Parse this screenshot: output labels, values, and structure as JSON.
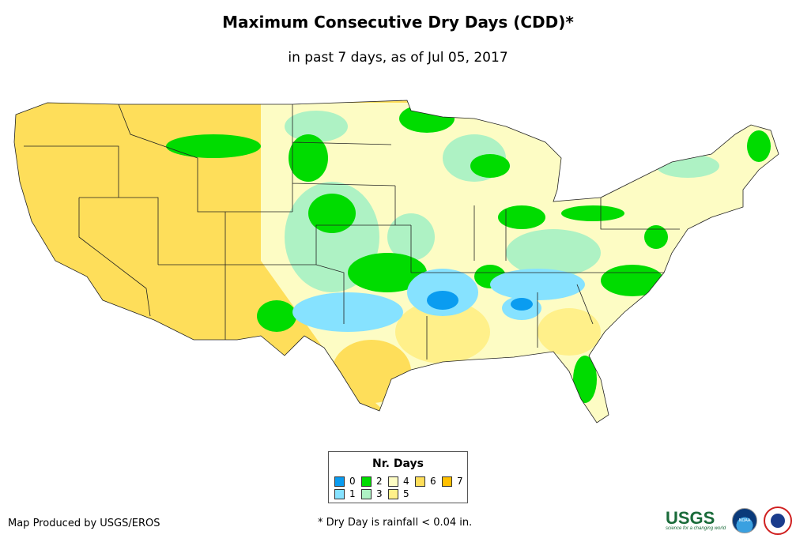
{
  "title": "Maximum Consecutive Dry Days (CDD)*",
  "subtitle": "in past 7 days, as of Jul 05, 2017",
  "legend": {
    "title": "Nr. Days",
    "items": [
      {
        "label": "0",
        "color": "#0a9cf0"
      },
      {
        "label": "1",
        "color": "#86e2ff"
      },
      {
        "label": "2",
        "color": "#00dc00"
      },
      {
        "label": "3",
        "color": "#aef2c4"
      },
      {
        "label": "4",
        "color": "#fdfcc4"
      },
      {
        "label": "5",
        "color": "#fff08a"
      },
      {
        "label": "6",
        "color": "#fede5a"
      },
      {
        "label": "7",
        "color": "#ffc000"
      }
    ]
  },
  "credit": "Map Produced by USGS/EROS",
  "footnote": "* Dry Day is rainfall < 0.04 in.",
  "logos": {
    "usgs": "USGS",
    "usgs_tagline": "science for a changing world",
    "noaa": "NOAA",
    "nws": "National Weather Service"
  }
}
